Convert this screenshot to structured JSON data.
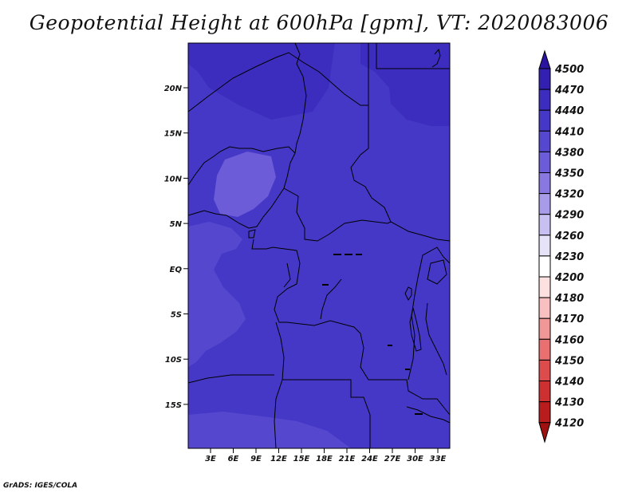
{
  "title": "Geopotential Height at 600hPa [gpm], VT: 2020083006",
  "credit": "GrADS: IGES/COLA",
  "lat_labels": [
    "20N",
    "15N",
    "10N",
    "5N",
    "EQ",
    "5S",
    "10S",
    "15S"
  ],
  "lon_labels": [
    "3E",
    "6E",
    "9E",
    "12E",
    "15E",
    "18E",
    "21E",
    "24E",
    "27E",
    "30E",
    "33E"
  ],
  "colorbar": {
    "levels": [
      "4500",
      "4470",
      "4440",
      "4410",
      "4380",
      "4350",
      "4320",
      "4290",
      "4260",
      "4230",
      "4200",
      "4180",
      "4170",
      "4160",
      "4150",
      "4140",
      "4130",
      "4120"
    ],
    "colors": [
      "#2a14a0",
      "#3320b0",
      "#3c2dbe",
      "#4638c6",
      "#5548cf",
      "#6c5cd8",
      "#8878e0",
      "#a89ce8",
      "#c8c0f0",
      "#e6e2f8",
      "#ffffff",
      "#fde0e0",
      "#f8c0c0",
      "#f09898",
      "#e87070",
      "#dc4c4c",
      "#cc3030",
      "#b81c1c",
      "#a01010"
    ]
  },
  "colors": {
    "field_main": "#4638c6",
    "field_high": "#3c2dbe",
    "field_low": "#5548cf",
    "field_lowest": "#6c5cd8"
  }
}
